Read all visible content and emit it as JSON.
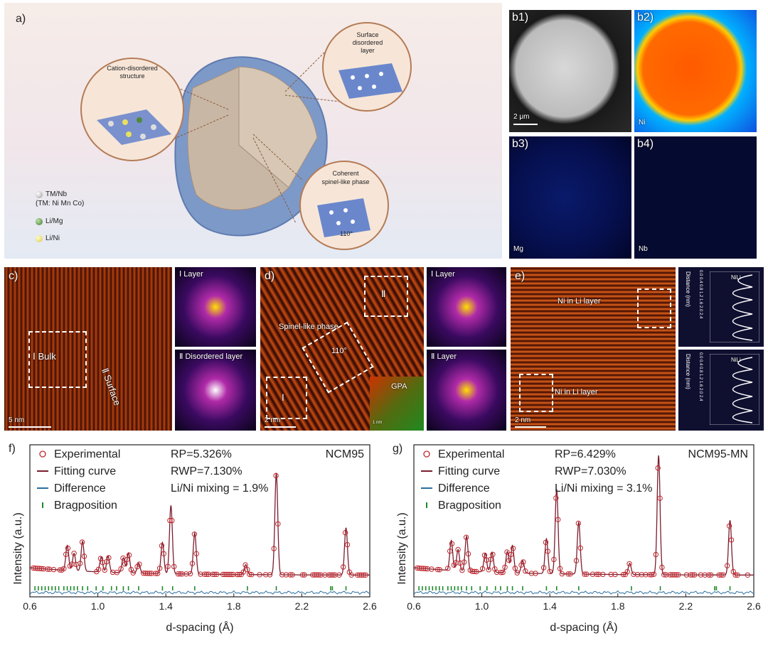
{
  "panel_a": {
    "letter": "a)",
    "callouts": {
      "cation": "Cation-disordered structure",
      "surface": "Surface disordered layer",
      "spinel_1": "Coherent",
      "spinel_2": "spinel-like phase",
      "angle": "110°"
    },
    "legend": [
      {
        "label": "TM/Nb",
        "color": "#c8c8c8"
      },
      {
        "label": "(TM: Ni Mn Co)",
        "color": ""
      },
      {
        "label": "Li/Mg",
        "color": "#4f8a3a"
      },
      {
        "label": "Li/Ni",
        "color": "#e8e060"
      }
    ]
  },
  "panel_b": {
    "b1": "b1)",
    "b2": "b2)",
    "b3": "b3)",
    "b4": "b4)",
    "scale": "2 μm",
    "el_ni": "Ni",
    "el_mg": "Mg",
    "el_nb": "Nb"
  },
  "panel_c": {
    "letter": "c)",
    "bulk": "Ⅰ Bulk",
    "surface": "Ⅱ Surface",
    "scale": "5 nm",
    "fft1": "Ⅰ Layer",
    "fft2": "Ⅱ Disordered layer"
  },
  "panel_d": {
    "letter": "d)",
    "spinel": "Spinel-like phase",
    "angle": "110°",
    "box1": "Ⅰ",
    "box2": "Ⅱ",
    "gpa": "GPA",
    "scale": "2 nm",
    "scale_small": "1 nm",
    "fft1": "Ⅰ Layer",
    "fft2": "Ⅱ Layer"
  },
  "panel_e": {
    "letter": "e)",
    "ni_top": "Ni in Li layer",
    "ni_bottom": "Ni in Li layer",
    "scale": "2 nm",
    "profile_label": "Distance (nm)",
    "profile_ticks": "0.0 0.4 0.8 1.2 1.6 2.0 2.4",
    "ni_li": "NiLi"
  },
  "chart_data": [
    {
      "type": "line",
      "panel": "f)",
      "xlabel": "d-spacing (Å)",
      "ylabel": "Intensity (a.u.)",
      "xlim": [
        0.6,
        2.6
      ],
      "xticks": [
        "0.6",
        "1.0",
        "1.4",
        "1.8",
        "2.2",
        "2.6"
      ],
      "legend": [
        "Experimental",
        "Fitting curve",
        "Difference",
        "Bragposition"
      ],
      "stats": [
        "RP=5.326%",
        "RWP=7.130%",
        "Li/Ni mixing = 1.9%"
      ],
      "sample": "NCM95",
      "peaks": [
        {
          "x": 0.82,
          "y": 0.2
        },
        {
          "x": 0.86,
          "y": 0.14
        },
        {
          "x": 0.91,
          "y": 0.24
        },
        {
          "x": 1.02,
          "y": 0.12
        },
        {
          "x": 1.06,
          "y": 0.13
        },
        {
          "x": 1.15,
          "y": 0.12
        },
        {
          "x": 1.18,
          "y": 0.16
        },
        {
          "x": 1.24,
          "y": 0.08
        },
        {
          "x": 1.38,
          "y": 0.25
        },
        {
          "x": 1.43,
          "y": 0.55
        },
        {
          "x": 1.57,
          "y": 0.33
        },
        {
          "x": 1.87,
          "y": 0.08
        },
        {
          "x": 2.05,
          "y": 0.82
        },
        {
          "x": 2.46,
          "y": 0.38
        }
      ],
      "bragg": [
        0.63,
        0.65,
        0.67,
        0.69,
        0.71,
        0.73,
        0.75,
        0.77,
        0.8,
        0.82,
        0.84,
        0.86,
        0.88,
        0.91,
        0.94,
        0.99,
        1.03,
        1.08,
        1.11,
        1.15,
        1.18,
        1.24,
        1.38,
        1.44,
        1.57,
        1.88,
        2.05,
        2.37,
        2.38,
        2.46
      ]
    },
    {
      "type": "line",
      "panel": "g)",
      "xlabel": "d-spacing (Å)",
      "ylabel": "Intensity (a.u.)",
      "xlim": [
        0.6,
        2.6
      ],
      "xticks": [
        "0.6",
        "1.0",
        "1.4",
        "1.8",
        "2.2",
        "2.6"
      ],
      "legend": [
        "Experimental",
        "Fitting curve",
        "Difference",
        "Bragposition"
      ],
      "stats": [
        "RP=6.429%",
        "RWP=7.030%",
        "Li/Ni mixing = 3.1%"
      ],
      "sample": "NCM95-MN",
      "peaks": [
        {
          "x": 0.82,
          "y": 0.24
        },
        {
          "x": 0.86,
          "y": 0.17
        },
        {
          "x": 0.91,
          "y": 0.28
        },
        {
          "x": 1.02,
          "y": 0.15
        },
        {
          "x": 1.06,
          "y": 0.16
        },
        {
          "x": 1.15,
          "y": 0.17
        },
        {
          "x": 1.18,
          "y": 0.22
        },
        {
          "x": 1.24,
          "y": 0.1
        },
        {
          "x": 1.38,
          "y": 0.28
        },
        {
          "x": 1.44,
          "y": 0.68
        },
        {
          "x": 1.57,
          "y": 0.42
        },
        {
          "x": 1.87,
          "y": 0.09
        },
        {
          "x": 2.04,
          "y": 0.96
        },
        {
          "x": 2.46,
          "y": 0.44
        }
      ],
      "bragg": [
        0.63,
        0.65,
        0.67,
        0.69,
        0.71,
        0.73,
        0.75,
        0.77,
        0.8,
        0.82,
        0.84,
        0.86,
        0.88,
        0.91,
        0.94,
        0.99,
        1.03,
        1.08,
        1.11,
        1.15,
        1.18,
        1.24,
        1.38,
        1.44,
        1.57,
        1.88,
        2.05,
        2.37,
        2.38,
        2.46
      ]
    }
  ]
}
